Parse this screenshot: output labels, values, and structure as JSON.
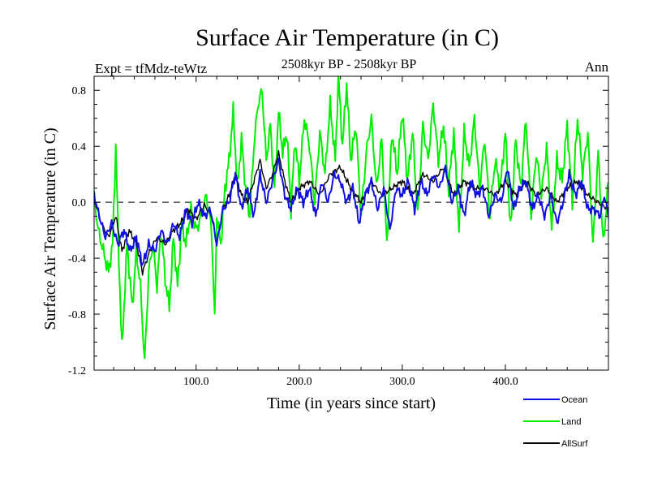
{
  "chart_data": {
    "type": "line",
    "title": "Surface Air Temperature (in C)",
    "subtitle": "2508kyr BP - 2508kyr BP",
    "expt_label": "Expt = tfMdz-teWtz",
    "period_label": "Ann",
    "xlabel": "Time (in years since start)",
    "ylabel": "Surface Air Temperature (in C)",
    "xlim": [
      1,
      500
    ],
    "ylim": [
      -1.2,
      0.9
    ],
    "x_ticks": [
      100,
      200,
      300,
      400
    ],
    "x_tick_labels": [
      "100.0",
      "200.0",
      "300.0",
      "400.0"
    ],
    "y_ticks": [
      -1.2,
      -0.8,
      -0.4,
      0.0,
      0.4,
      0.8
    ],
    "y_tick_labels": [
      "-1.2",
      "-0.8",
      "-0.4",
      "0.0",
      "0.4",
      "0.8"
    ],
    "reference_line": 0.0,
    "series": [
      {
        "name": "Land",
        "color": "#00ee00",
        "knots": [
          [
            1,
            0.05
          ],
          [
            5,
            -0.2
          ],
          [
            10,
            -0.35
          ],
          [
            15,
            -0.5
          ],
          [
            19,
            -0.3
          ],
          [
            22,
            0.4
          ],
          [
            25,
            -0.4
          ],
          [
            28,
            -1.05
          ],
          [
            33,
            -0.3
          ],
          [
            38,
            -0.75
          ],
          [
            42,
            -0.35
          ],
          [
            46,
            -0.6
          ],
          [
            50,
            -1.15
          ],
          [
            54,
            -0.5
          ],
          [
            58,
            -0.3
          ],
          [
            62,
            -0.6
          ],
          [
            66,
            -0.2
          ],
          [
            70,
            -0.55
          ],
          [
            74,
            -0.75
          ],
          [
            78,
            -0.25
          ],
          [
            82,
            -0.6
          ],
          [
            86,
            -0.15
          ],
          [
            90,
            -0.3
          ],
          [
            95,
            -0.05
          ],
          [
            100,
            -0.2
          ],
          [
            105,
            -0.1
          ],
          [
            110,
            0.05
          ],
          [
            115,
            -0.2
          ],
          [
            118,
            -0.85
          ],
          [
            120,
            -0.1
          ],
          [
            124,
            -0.3
          ],
          [
            128,
            0.1
          ],
          [
            132,
            0.3
          ],
          [
            136,
            0.65
          ],
          [
            140,
            0.1
          ],
          [
            144,
            0.45
          ],
          [
            148,
            0.1
          ],
          [
            152,
            -0.1
          ],
          [
            156,
            0.4
          ],
          [
            160,
            0.7
          ],
          [
            164,
            0.8
          ],
          [
            168,
            0.3
          ],
          [
            172,
            0.55
          ],
          [
            176,
            0.1
          ],
          [
            180,
            0.65
          ],
          [
            184,
            0.35
          ],
          [
            188,
            0.5
          ],
          [
            192,
            -0.05
          ],
          [
            196,
            0.45
          ],
          [
            200,
            0.15
          ],
          [
            205,
            0.6
          ],
          [
            210,
            0.4
          ],
          [
            215,
            0.0
          ],
          [
            220,
            0.5
          ],
          [
            225,
            0.2
          ],
          [
            230,
            0.7
          ],
          [
            235,
            0.3
          ],
          [
            238,
            0.9
          ],
          [
            242,
            0.4
          ],
          [
            246,
            0.85
          ],
          [
            250,
            0.3
          ],
          [
            255,
            0.55
          ],
          [
            260,
            -0.1
          ],
          [
            265,
            0.35
          ],
          [
            270,
            0.6
          ],
          [
            275,
            0.1
          ],
          [
            280,
            0.45
          ],
          [
            285,
            -0.3
          ],
          [
            290,
            0.5
          ],
          [
            295,
            0.2
          ],
          [
            300,
            0.65
          ],
          [
            305,
            0.15
          ],
          [
            310,
            0.5
          ],
          [
            315,
            -0.1
          ],
          [
            320,
            0.55
          ],
          [
            325,
            0.3
          ],
          [
            330,
            0.7
          ],
          [
            335,
            0.3
          ],
          [
            340,
            0.55
          ],
          [
            345,
            0.1
          ],
          [
            350,
            0.5
          ],
          [
            355,
            -0.2
          ],
          [
            360,
            0.5
          ],
          [
            365,
            0.25
          ],
          [
            370,
            0.6
          ],
          [
            375,
            0.1
          ],
          [
            380,
            0.45
          ],
          [
            385,
            -0.1
          ],
          [
            390,
            0.3
          ],
          [
            395,
            0.1
          ],
          [
            400,
            0.5
          ],
          [
            405,
            -0.2
          ],
          [
            410,
            0.45
          ],
          [
            415,
            0.1
          ],
          [
            420,
            0.6
          ],
          [
            425,
            -0.1
          ],
          [
            430,
            0.35
          ],
          [
            435,
            0.05
          ],
          [
            440,
            0.4
          ],
          [
            445,
            -0.2
          ],
          [
            450,
            0.3
          ],
          [
            455,
            0.15
          ],
          [
            460,
            0.55
          ],
          [
            465,
            0.0
          ],
          [
            470,
            0.6
          ],
          [
            475,
            0.2
          ],
          [
            480,
            0.5
          ],
          [
            485,
            -0.3
          ],
          [
            490,
            0.35
          ],
          [
            495,
            -0.3
          ],
          [
            500,
            0.15
          ]
        ]
      },
      {
        "name": "AllSurf",
        "color": "#000000",
        "knots": [
          [
            1,
            0.03
          ],
          [
            8,
            -0.15
          ],
          [
            15,
            -0.25
          ],
          [
            22,
            -0.1
          ],
          [
            28,
            -0.35
          ],
          [
            35,
            -0.2
          ],
          [
            42,
            -0.3
          ],
          [
            48,
            -0.5
          ],
          [
            55,
            -0.35
          ],
          [
            62,
            -0.25
          ],
          [
            70,
            -0.3
          ],
          [
            78,
            -0.2
          ],
          [
            85,
            -0.15
          ],
          [
            92,
            -0.05
          ],
          [
            100,
            -0.12
          ],
          [
            108,
            -0.02
          ],
          [
            115,
            -0.1
          ],
          [
            120,
            -0.3
          ],
          [
            126,
            -0.05
          ],
          [
            132,
            0.05
          ],
          [
            138,
            0.2
          ],
          [
            144,
            0.05
          ],
          [
            150,
            0.0
          ],
          [
            156,
            0.15
          ],
          [
            162,
            0.3
          ],
          [
            168,
            0.1
          ],
          [
            174,
            0.2
          ],
          [
            180,
            0.35
          ],
          [
            186,
            0.15
          ],
          [
            192,
            0.0
          ],
          [
            200,
            0.1
          ],
          [
            210,
            0.15
          ],
          [
            220,
            0.05
          ],
          [
            230,
            0.2
          ],
          [
            240,
            0.25
          ],
          [
            250,
            0.1
          ],
          [
            260,
            0.0
          ],
          [
            270,
            0.15
          ],
          [
            280,
            0.05
          ],
          [
            290,
            0.1
          ],
          [
            300,
            0.15
          ],
          [
            310,
            0.05
          ],
          [
            320,
            0.2
          ],
          [
            330,
            0.15
          ],
          [
            340,
            0.25
          ],
          [
            350,
            0.05
          ],
          [
            360,
            0.15
          ],
          [
            370,
            0.1
          ],
          [
            380,
            0.1
          ],
          [
            390,
            0.05
          ],
          [
            400,
            0.15
          ],
          [
            410,
            0.05
          ],
          [
            420,
            0.15
          ],
          [
            430,
            0.05
          ],
          [
            440,
            0.1
          ],
          [
            450,
            0.0
          ],
          [
            460,
            0.1
          ],
          [
            470,
            0.15
          ],
          [
            480,
            0.05
          ],
          [
            490,
            0.0
          ],
          [
            500,
            -0.05
          ]
        ]
      },
      {
        "name": "Ocean",
        "color": "#1010e0",
        "knots": [
          [
            1,
            0.05
          ],
          [
            6,
            -0.1
          ],
          [
            12,
            -0.25
          ],
          [
            18,
            -0.15
          ],
          [
            24,
            -0.3
          ],
          [
            30,
            -0.2
          ],
          [
            36,
            -0.35
          ],
          [
            42,
            -0.25
          ],
          [
            48,
            -0.45
          ],
          [
            54,
            -0.3
          ],
          [
            60,
            -0.35
          ],
          [
            66,
            -0.2
          ],
          [
            72,
            -0.3
          ],
          [
            78,
            -0.15
          ],
          [
            84,
            -0.25
          ],
          [
            90,
            -0.05
          ],
          [
            96,
            -0.15
          ],
          [
            102,
            0.0
          ],
          [
            108,
            -0.1
          ],
          [
            114,
            -0.05
          ],
          [
            120,
            -0.3
          ],
          [
            126,
            -0.05
          ],
          [
            132,
            0.0
          ],
          [
            138,
            0.2
          ],
          [
            144,
            -0.05
          ],
          [
            150,
            0.1
          ],
          [
            156,
            -0.1
          ],
          [
            162,
            0.2
          ],
          [
            168,
            0.0
          ],
          [
            174,
            0.15
          ],
          [
            180,
            0.3
          ],
          [
            186,
            0.05
          ],
          [
            192,
            -0.05
          ],
          [
            198,
            0.1
          ],
          [
            204,
            0.0
          ],
          [
            210,
            0.1
          ],
          [
            216,
            -0.1
          ],
          [
            222,
            0.15
          ],
          [
            228,
            0.0
          ],
          [
            234,
            0.2
          ],
          [
            240,
            0.15
          ],
          [
            246,
            0.0
          ],
          [
            252,
            0.1
          ],
          [
            258,
            -0.15
          ],
          [
            264,
            0.05
          ],
          [
            270,
            0.15
          ],
          [
            276,
            -0.05
          ],
          [
            282,
            0.1
          ],
          [
            288,
            -0.2
          ],
          [
            294,
            0.1
          ],
          [
            300,
            0.05
          ],
          [
            306,
            0.15
          ],
          [
            312,
            -0.05
          ],
          [
            318,
            0.15
          ],
          [
            324,
            0.05
          ],
          [
            330,
            0.2
          ],
          [
            336,
            0.1
          ],
          [
            342,
            0.25
          ],
          [
            348,
            0.0
          ],
          [
            354,
            0.1
          ],
          [
            360,
            -0.1
          ],
          [
            366,
            0.15
          ],
          [
            372,
            0.05
          ],
          [
            378,
            0.1
          ],
          [
            384,
            -0.1
          ],
          [
            390,
            0.05
          ],
          [
            396,
            0.0
          ],
          [
            402,
            0.25
          ],
          [
            408,
            -0.05
          ],
          [
            414,
            0.1
          ],
          [
            420,
            0.15
          ],
          [
            426,
            -0.05
          ],
          [
            432,
            0.05
          ],
          [
            438,
            -0.1
          ],
          [
            444,
            0.05
          ],
          [
            450,
            -0.15
          ],
          [
            456,
            0.0
          ],
          [
            462,
            0.2
          ],
          [
            468,
            0.05
          ],
          [
            474,
            0.15
          ],
          [
            480,
            -0.05
          ],
          [
            486,
            -0.05
          ],
          [
            492,
            -0.1
          ],
          [
            496,
            0.05
          ],
          [
            500,
            -0.1
          ]
        ]
      }
    ],
    "legend": {
      "position": "bottom-right",
      "entries": [
        {
          "name": "Ocean",
          "color": "#1010e0"
        },
        {
          "name": "Land",
          "color": "#00ee00"
        },
        {
          "name": "AllSurf",
          "color": "#000000"
        }
      ]
    }
  }
}
